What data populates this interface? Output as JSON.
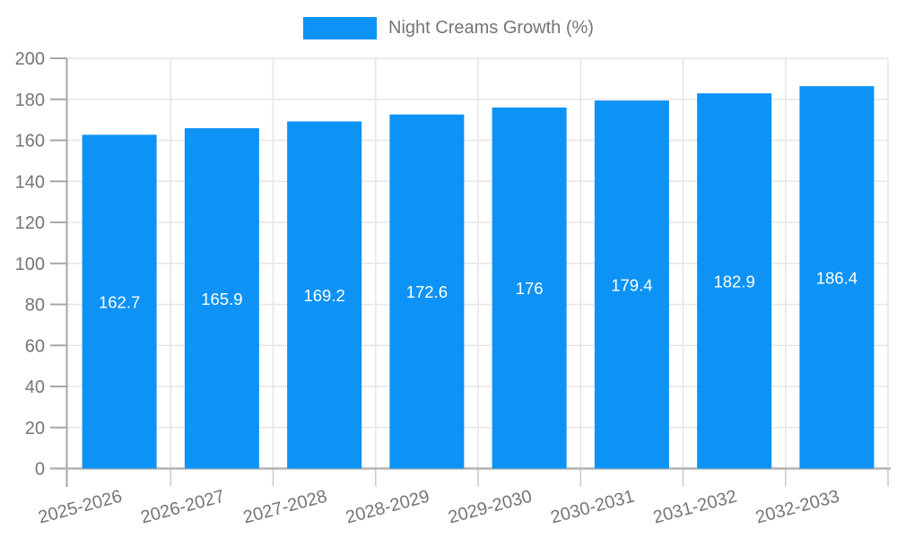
{
  "legend": {
    "label": "Night Creams Growth (%)",
    "swatch_color": "#0d92f5"
  },
  "chart_data": {
    "type": "bar",
    "title": "Night Creams Growth (%)",
    "categories": [
      "2025-2026",
      "2026-2027",
      "2027-2028",
      "2028-2029",
      "2029-2030",
      "2030-2031",
      "2031-2032",
      "2032-2033"
    ],
    "series": [
      {
        "name": "Night Creams Growth (%)",
        "color": "#0d92f5",
        "values": [
          162.7,
          165.9,
          169.2,
          172.6,
          176,
          179.4,
          182.9,
          186.4
        ],
        "value_labels": [
          "162.7",
          "165.9",
          "169.2",
          "172.6",
          "176",
          "179.4",
          "182.9",
          "186.4"
        ]
      }
    ],
    "xlabel": "",
    "ylabel": "",
    "ylim": [
      0,
      200
    ],
    "yticks": [
      0,
      20,
      40,
      60,
      80,
      100,
      120,
      140,
      160,
      180,
      200
    ],
    "grid": true,
    "legend_position": "top",
    "x_label_rotation_deg": -15,
    "colors": {
      "bar": "#0d92f5",
      "value_label": "#ffffff",
      "axis_text": "#757575",
      "gridline": "#e6e6e6",
      "axis_line": "#a6a6a6",
      "bottom_line": "#b3b3b3",
      "background": "#ffffff"
    }
  }
}
